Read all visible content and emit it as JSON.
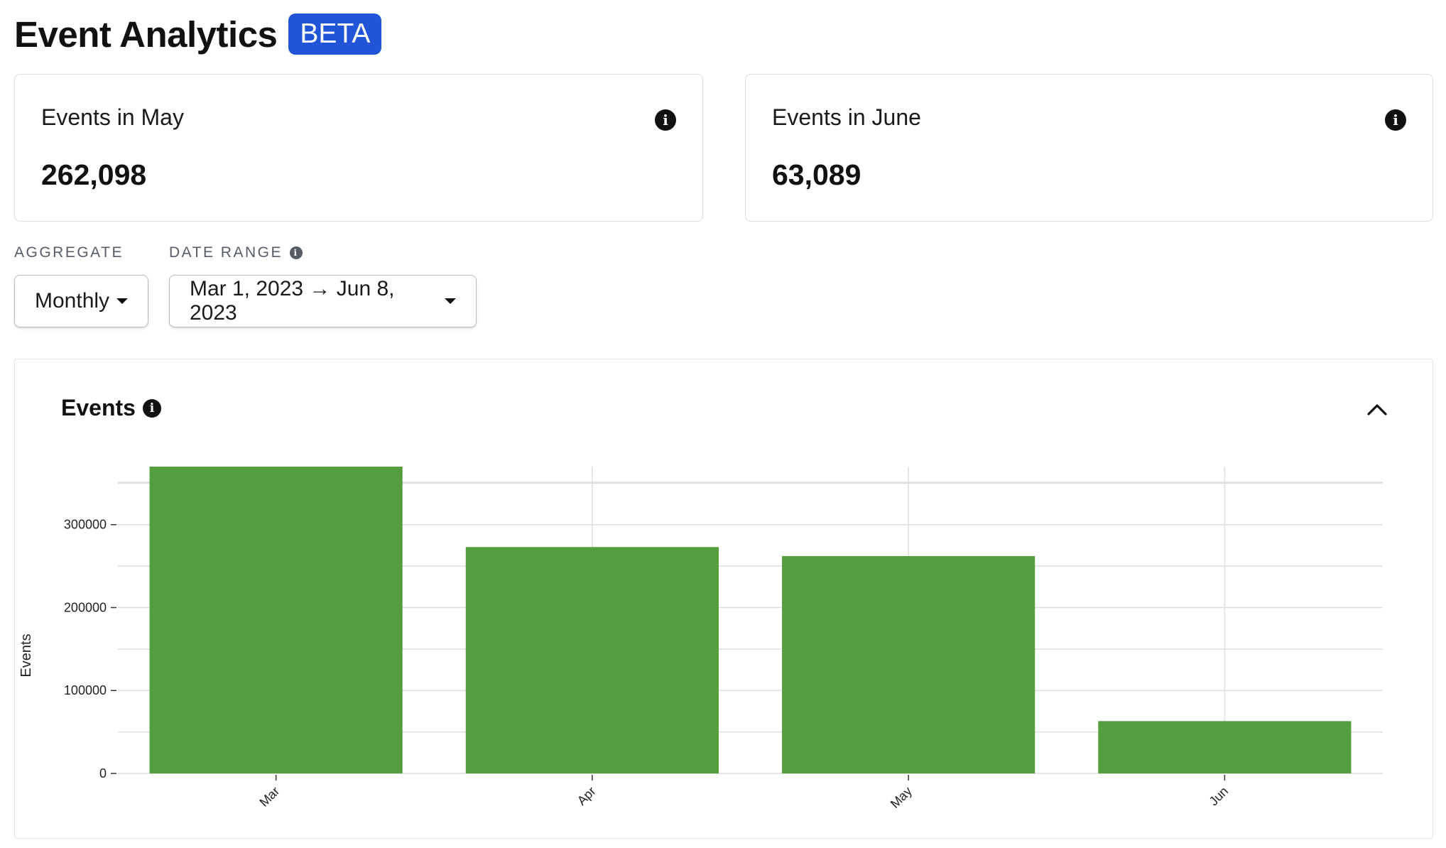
{
  "header": {
    "title": "Event Analytics",
    "badge": "BETA"
  },
  "stats": [
    {
      "label": "Events in May",
      "value": "262,098"
    },
    {
      "label": "Events in June",
      "value": "63,089"
    }
  ],
  "filters": {
    "aggregate": {
      "label": "AGGREGATE",
      "value": "Monthly"
    },
    "date_range": {
      "label": "DATE RANGE",
      "value": "Mar 1, 2023 → Jun 8, 2023"
    }
  },
  "chart_panel": {
    "title": "Events"
  },
  "colors": {
    "bar": "#559e3f",
    "badge": "#2154d6"
  },
  "icons": {
    "info": "info-icon",
    "collapse": "chevron-up-icon",
    "dropdown": "caret-down-icon"
  },
  "chart_data": {
    "type": "bar",
    "categories": [
      "Mar",
      "Apr",
      "May",
      "Jun"
    ],
    "values": [
      370000,
      273000,
      262098,
      63089
    ],
    "title": "",
    "xlabel": "",
    "ylabel": "Events",
    "ylim": [
      0,
      370000
    ],
    "yticks": [
      0,
      100000,
      200000,
      300000
    ],
    "grid": true
  }
}
